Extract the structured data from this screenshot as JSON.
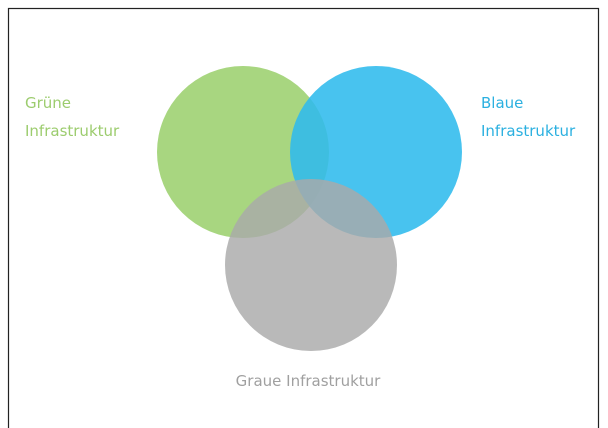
{
  "nodes": [
    {
      "lines": [
        "Grüne",
        "Infrastruktur"
      ]
    },
    {
      "lines": [
        "Blaue",
        "Infrastruktur"
      ]
    },
    {
      "lines": [
        "Graue Infrastruktur"
      ]
    }
  ]
}
